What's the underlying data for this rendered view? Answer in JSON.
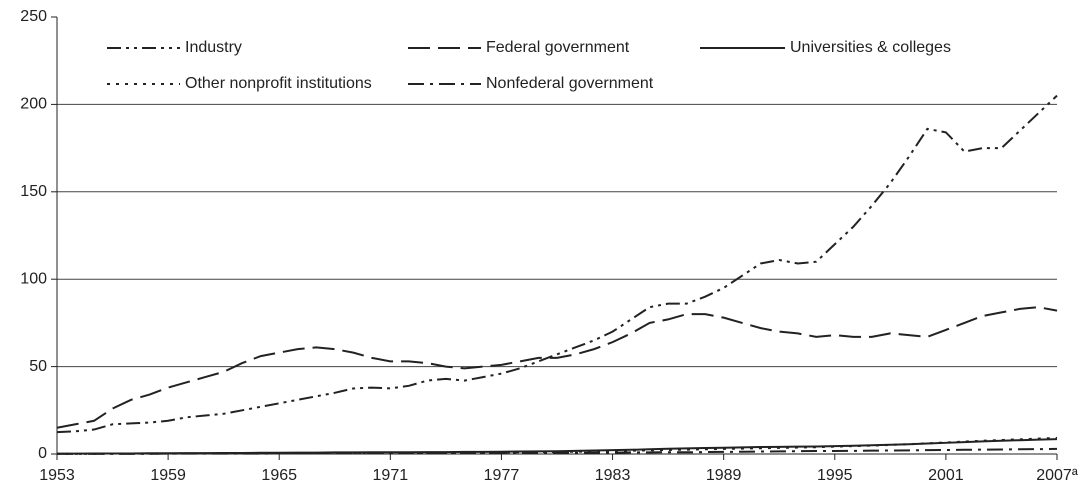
{
  "chart_data": {
    "type": "line",
    "x": [
      1953,
      1954,
      1955,
      1956,
      1957,
      1958,
      1959,
      1960,
      1961,
      1962,
      1963,
      1964,
      1965,
      1966,
      1967,
      1968,
      1969,
      1970,
      1971,
      1972,
      1973,
      1974,
      1975,
      1976,
      1977,
      1978,
      1979,
      1980,
      1981,
      1982,
      1983,
      1984,
      1985,
      1986,
      1987,
      1988,
      1989,
      1990,
      1991,
      1992,
      1993,
      1994,
      1995,
      1996,
      1997,
      1998,
      1999,
      2000,
      2001,
      2002,
      2003,
      2004,
      2005,
      2006,
      2007
    ],
    "series": [
      {
        "name": "Industry",
        "color": "#222222",
        "style": "dash-dot-dot",
        "values": [
          12.5,
          13,
          14,
          17,
          17.5,
          18,
          19,
          21,
          22,
          23,
          25,
          27,
          29,
          31,
          33,
          35,
          37.5,
          38,
          37.5,
          39,
          42,
          43,
          42,
          44,
          46,
          49,
          53,
          57,
          61,
          65,
          70,
          77,
          84,
          86,
          86,
          90,
          95,
          102,
          109,
          111,
          109,
          110,
          120,
          130,
          142,
          155,
          170,
          186,
          184,
          173,
          175,
          175,
          185,
          195,
          205
        ]
      },
      {
        "name": "Federal government",
        "color": "#222222",
        "style": "dashed",
        "values": [
          15,
          17,
          19,
          26,
          31,
          34,
          38,
          41,
          44,
          47,
          52,
          56,
          58,
          60,
          61,
          60,
          58,
          55,
          53,
          53,
          52,
          50,
          49,
          50,
          51,
          53,
          55,
          55,
          57,
          60,
          64,
          69,
          75,
          77,
          80,
          80,
          78,
          75,
          72,
          70,
          69,
          67,
          68,
          67,
          67,
          69,
          68,
          67,
          71,
          75,
          79,
          81,
          83,
          84,
          82
        ]
      },
      {
        "name": "Universities & colleges",
        "color": "#222222",
        "style": "solid",
        "values": [
          0.2,
          0.2,
          0.3,
          0.3,
          0.3,
          0.4,
          0.4,
          0.5,
          0.5,
          0.6,
          0.6,
          0.7,
          0.7,
          0.8,
          0.8,
          0.9,
          0.9,
          1.0,
          1.0,
          1.0,
          1.1,
          1.1,
          1.2,
          1.2,
          1.3,
          1.4,
          1.5,
          1.6,
          1.8,
          2.0,
          2.2,
          2.4,
          2.7,
          3.0,
          3.2,
          3.4,
          3.6,
          3.8,
          4.0,
          4.1,
          4.2,
          4.3,
          4.5,
          4.7,
          5.0,
          5.3,
          5.6,
          6.0,
          6.4,
          6.8,
          7.2,
          7.6,
          7.9,
          8.2,
          8.5
        ]
      },
      {
        "name": "Other nonprofit institutions",
        "color": "#222222",
        "style": "dotted",
        "values": [
          0.1,
          0.1,
          0.1,
          0.2,
          0.2,
          0.2,
          0.2,
          0.3,
          0.3,
          0.3,
          0.4,
          0.4,
          0.4,
          0.5,
          0.5,
          0.5,
          0.5,
          0.6,
          0.6,
          0.6,
          0.7,
          0.7,
          0.8,
          0.8,
          0.9,
          1.0,
          1.1,
          1.2,
          1.3,
          1.5,
          1.7,
          1.9,
          2.1,
          2.3,
          2.5,
          2.7,
          2.9,
          3.1,
          3.3,
          3.5,
          3.7,
          3.9,
          4.2,
          4.5,
          4.8,
          5.2,
          5.6,
          6.1,
          6.6,
          7.1,
          7.6,
          8.0,
          8.4,
          8.8,
          9.2
        ]
      },
      {
        "name": "Nonfederal government",
        "color": "#222222",
        "style": "dash-dot",
        "values": [
          0.1,
          0.1,
          0.1,
          0.1,
          0.1,
          0.1,
          0.2,
          0.2,
          0.2,
          0.2,
          0.2,
          0.2,
          0.3,
          0.3,
          0.3,
          0.3,
          0.3,
          0.3,
          0.4,
          0.4,
          0.4,
          0.4,
          0.5,
          0.5,
          0.5,
          0.6,
          0.6,
          0.7,
          0.7,
          0.8,
          0.8,
          0.9,
          0.9,
          1.0,
          1.0,
          1.1,
          1.2,
          1.3,
          1.4,
          1.5,
          1.6,
          1.7,
          1.7,
          1.8,
          1.9,
          2.0,
          2.1,
          2.2,
          2.3,
          2.4,
          2.5,
          2.6,
          2.7,
          2.8,
          2.9
        ]
      }
    ],
    "xlim": [
      1953,
      2007
    ],
    "xticks": [
      1953,
      1959,
      1965,
      1971,
      1977,
      1983,
      1989,
      1995,
      2001,
      {
        "value": 2007,
        "label": "2007ª"
      }
    ],
    "ylim": [
      0,
      250
    ],
    "yticks": [
      0,
      50,
      100,
      150,
      200,
      250
    ],
    "grid": true,
    "legend": "top-left"
  }
}
